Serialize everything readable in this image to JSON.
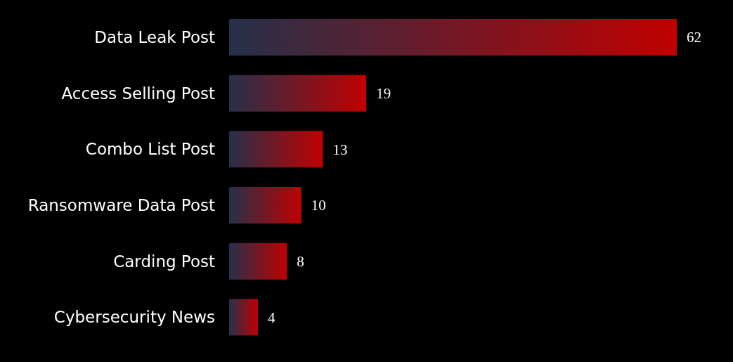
{
  "chart_data": {
    "type": "bar",
    "orientation": "horizontal",
    "categories": [
      "Data Leak Post",
      "Access Selling Post",
      "Combo List Post",
      "Ransomware Data Post",
      "Carding Post",
      "Cybersecurity News"
    ],
    "values": [
      62,
      19,
      13,
      10,
      8,
      4
    ],
    "color": "#c00000",
    "data_labels": true,
    "grid": false,
    "legend": false
  }
}
